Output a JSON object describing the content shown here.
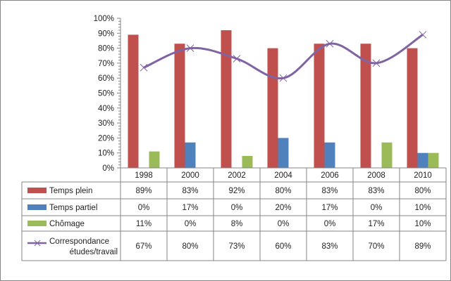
{
  "chart_data": {
    "type": "bar",
    "title": "",
    "xlabel": "",
    "ylabel": "",
    "ylim": [
      0,
      100
    ],
    "yticks": [
      "0%",
      "10%",
      "20%",
      "30%",
      "40%",
      "50%",
      "60%",
      "70%",
      "80%",
      "90%",
      "100%"
    ],
    "categories": [
      "1998",
      "2000",
      "2002",
      "2004",
      "2006",
      "2008",
      "2010"
    ],
    "series": [
      {
        "name": "Temps plein",
        "type": "bar",
        "color": "#c0504d",
        "values": [
          89,
          83,
          92,
          80,
          83,
          83,
          80
        ],
        "labels": [
          "89%",
          "83%",
          "92%",
          "80%",
          "83%",
          "83%",
          "80%"
        ]
      },
      {
        "name": "Temps partiel",
        "type": "bar",
        "color": "#4f81bd",
        "values": [
          0,
          17,
          0,
          20,
          17,
          0,
          10
        ],
        "labels": [
          "0%",
          "17%",
          "0%",
          "20%",
          "17%",
          "0%",
          "10%"
        ]
      },
      {
        "name": "Chômage",
        "type": "bar",
        "color": "#9bbb59",
        "values": [
          11,
          0,
          8,
          0,
          0,
          17,
          10
        ],
        "labels": [
          "11%",
          "0%",
          "8%",
          "0%",
          "0%",
          "17%",
          "10%"
        ]
      },
      {
        "name": "Correspondance études/travail",
        "name_lines": [
          "Correspondance",
          "études/travail"
        ],
        "type": "line",
        "color": "#8064a2",
        "values": [
          67,
          80,
          73,
          60,
          83,
          70,
          89
        ],
        "labels": [
          "67%",
          "80%",
          "73%",
          "60%",
          "83%",
          "70%",
          "89%"
        ]
      }
    ],
    "legend": "data-table"
  }
}
